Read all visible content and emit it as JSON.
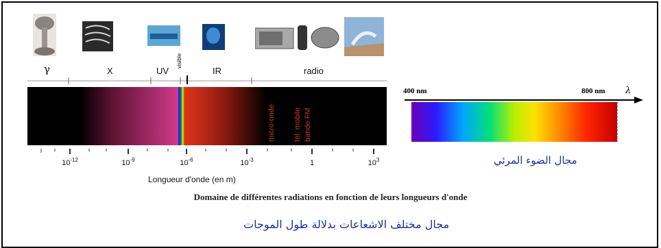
{
  "bands": [
    "γ",
    "X",
    "UV",
    "visible",
    "IR",
    "radio"
  ],
  "wavelength_ticks": [
    {
      "base": "10",
      "exp": "-12"
    },
    {
      "base": "10",
      "exp": "-9"
    },
    {
      "base": "10",
      "exp": "-6"
    },
    {
      "base": "10",
      "exp": "-3"
    },
    {
      "base": "1",
      "exp": ""
    },
    {
      "base": "10",
      "exp": "3"
    }
  ],
  "axis_label": "Longueur d'onde (en m)",
  "sub_bands": [
    "micro-onde",
    "tél. mobile",
    "bande FM"
  ],
  "caption_fr": "Domaine de différentes radiations en fonction de leurs longueurs d'onde",
  "caption_ar_main": "مجال مختلف الاشعاعات بدلالة طول الموجات",
  "visible_panel": {
    "start_label": "400 nm",
    "end_label": "800 nm",
    "axis_symbol": "λ",
    "caption_ar": "مجال الضوء المرئي"
  },
  "colors": {
    "caption_ar": "#1a2fa8",
    "sub_band_text": "#c0392b"
  },
  "icons": [
    "nuclear-explosion-icon",
    "xray-image-icon",
    "uv-lamp-icon",
    "infrared-image-icon",
    "radio-devices-icon",
    "radar-antenna-icon"
  ]
}
